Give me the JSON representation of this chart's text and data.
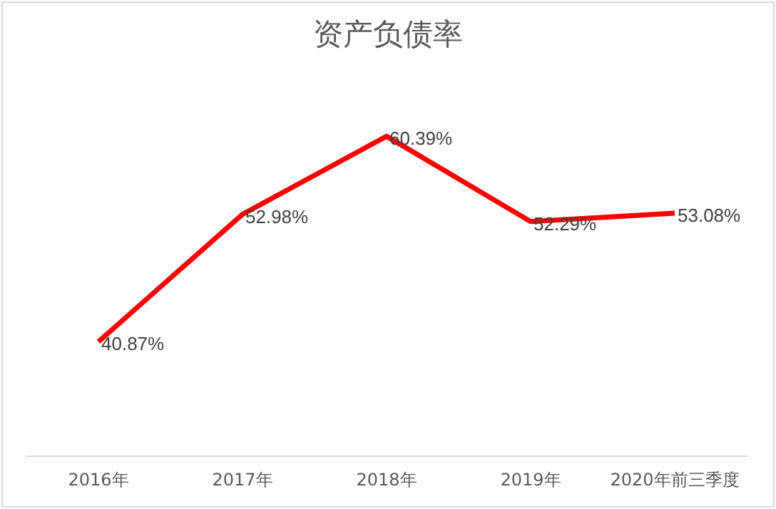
{
  "chart_data": {
    "type": "line",
    "title": "资产负债率",
    "categories": [
      "2016年",
      "2017年",
      "2018年",
      "2019年",
      "2020年前三季度"
    ],
    "series": [
      {
        "color": "#ff0000",
        "values": [
          40.87,
          52.98,
          60.39,
          52.29,
          53.08
        ],
        "value_labels": [
          "40.87%",
          "52.98%",
          "60.39%",
          "52.29%",
          "53.08%"
        ]
      }
    ],
    "marker": "none",
    "line_style": "solid",
    "tick_labels": "x"
  }
}
